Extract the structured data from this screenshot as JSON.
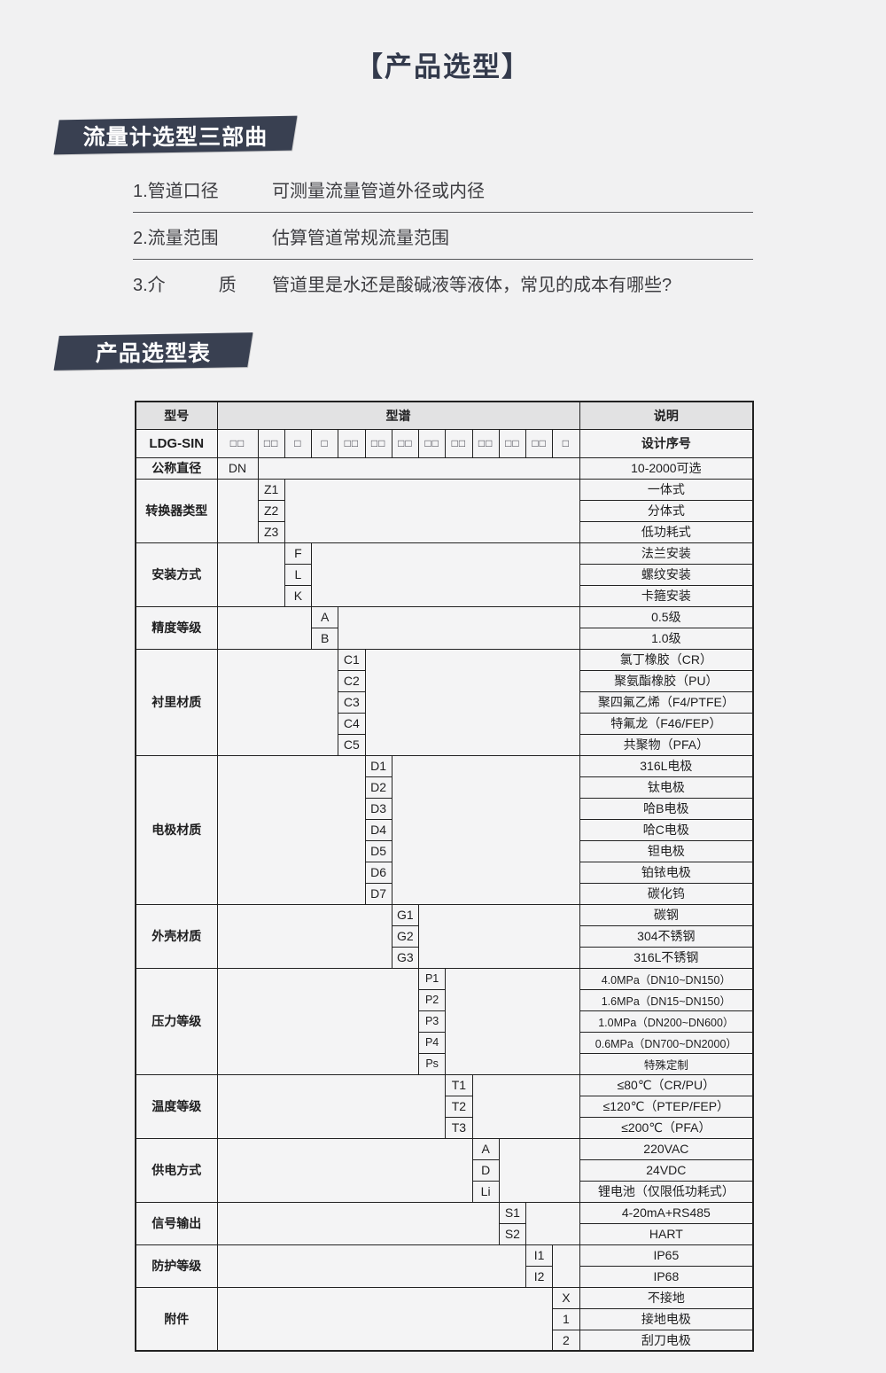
{
  "page": {
    "title": "【产品选型】",
    "steps_banner": "流量计选型三部曲",
    "table_banner": "产品选型表"
  },
  "steps": [
    {
      "label": "1.管道口径",
      "desc": "可测量流量管道外径或内径"
    },
    {
      "label": "2.流量范围",
      "desc": "估算管道常规流量范围"
    },
    {
      "label": "3.介　　　质",
      "desc": "管道里是水还是酸碱液等液体，常见的成本有哪些?"
    }
  ],
  "table": {
    "headers": {
      "model": "型号",
      "spectrum": "型谱",
      "description": "说明"
    },
    "model_row": {
      "model": "LDG-SIN",
      "boxes": [
        "□□",
        "□□",
        "□",
        "□",
        "□□",
        "□□",
        "□□",
        "□□",
        "□□",
        "□□",
        "□□",
        "□□",
        "□"
      ],
      "description": "设计序号"
    },
    "bands": [
      {
        "category": "公称直径",
        "col": 0,
        "rows": [
          {
            "code": "DN",
            "desc": "10-2000可选"
          }
        ]
      },
      {
        "category": "转换器类型",
        "col": 1,
        "rows": [
          {
            "code": "Z1",
            "desc": "一体式"
          },
          {
            "code": "Z2",
            "desc": "分体式"
          },
          {
            "code": "Z3",
            "desc": "低功耗式"
          }
        ]
      },
      {
        "category": "安装方式",
        "col": 2,
        "rows": [
          {
            "code": "F",
            "desc": "法兰安装"
          },
          {
            "code": "L",
            "desc": "螺纹安装"
          },
          {
            "code": "K",
            "desc": "卡箍安装"
          }
        ]
      },
      {
        "category": "精度等级",
        "col": 3,
        "rows": [
          {
            "code": "A",
            "desc": "0.5级"
          },
          {
            "code": "B",
            "desc": "1.0级"
          }
        ]
      },
      {
        "category": "衬里材质",
        "col": 4,
        "rows": [
          {
            "code": "C1",
            "desc": "氯丁橡胶（CR）"
          },
          {
            "code": "C2",
            "desc": "聚氨酯橡胶（PU）"
          },
          {
            "code": "C3",
            "desc": "聚四氟乙烯（F4/PTFE）"
          },
          {
            "code": "C4",
            "desc": "特氟龙（F46/FEP）"
          },
          {
            "code": "C5",
            "desc": "共聚物（PFA）"
          }
        ]
      },
      {
        "category": "电极材质",
        "col": 5,
        "rows": [
          {
            "code": "D1",
            "desc": "316L电极"
          },
          {
            "code": "D2",
            "desc": "钛电极"
          },
          {
            "code": "D3",
            "desc": "哈B电极"
          },
          {
            "code": "D4",
            "desc": "哈C电极"
          },
          {
            "code": "D5",
            "desc": "钽电极"
          },
          {
            "code": "D6",
            "desc": "铂铱电极"
          },
          {
            "code": "D7",
            "desc": "碳化钨"
          }
        ]
      },
      {
        "category": "外壳材质",
        "col": 6,
        "rows": [
          {
            "code": "G1",
            "desc": "碳钢"
          },
          {
            "code": "G2",
            "desc": "304不锈钢"
          },
          {
            "code": "G3",
            "desc": "316L不锈钢"
          }
        ]
      },
      {
        "category": "压力等级",
        "col": 7,
        "small": true,
        "rows": [
          {
            "code": "P1",
            "desc": "4.0MPa（DN10~DN150）"
          },
          {
            "code": "P2",
            "desc": "1.6MPa（DN15~DN150）"
          },
          {
            "code": "P3",
            "desc": "1.0MPa（DN200~DN600）"
          },
          {
            "code": "P4",
            "desc": "0.6MPa（DN700~DN2000）"
          },
          {
            "code": "Ps",
            "desc": "特殊定制"
          }
        ]
      },
      {
        "category": "温度等级",
        "col": 8,
        "rows": [
          {
            "code": "T1",
            "desc": "≤80℃（CR/PU）"
          },
          {
            "code": "T2",
            "desc": "≤120℃（PTEP/FEP）"
          },
          {
            "code": "T3",
            "desc": "≤200℃（PFA）"
          }
        ]
      },
      {
        "category": "供电方式",
        "col": 9,
        "rows": [
          {
            "code": "A",
            "desc": "220VAC"
          },
          {
            "code": "D",
            "desc": "24VDC"
          },
          {
            "code": "Li",
            "desc": "锂电池（仅限低功耗式）"
          }
        ]
      },
      {
        "category": "信号输出",
        "col": 10,
        "rows": [
          {
            "code": "S1",
            "desc": "4-20mA+RS485"
          },
          {
            "code": "S2",
            "desc": "HART"
          }
        ]
      },
      {
        "category": "防护等级",
        "col": 11,
        "rows": [
          {
            "code": "I1",
            "desc": "IP65"
          },
          {
            "code": "I2",
            "desc": "IP68"
          }
        ]
      },
      {
        "category": "附件",
        "col": 12,
        "rows": [
          {
            "code": "X",
            "desc": "不接地"
          },
          {
            "code": "1",
            "desc": "接地电极"
          },
          {
            "code": "2",
            "desc": "刮刀电极"
          }
        ]
      }
    ]
  },
  "colors": {
    "page_bg": "#f1f1f2",
    "banner_bg": "#394051",
    "title_text": "#333a4c",
    "table_border": "#222222",
    "table_header_bg": "#e2e2e3",
    "cell_bg": "#f4f4f5"
  }
}
